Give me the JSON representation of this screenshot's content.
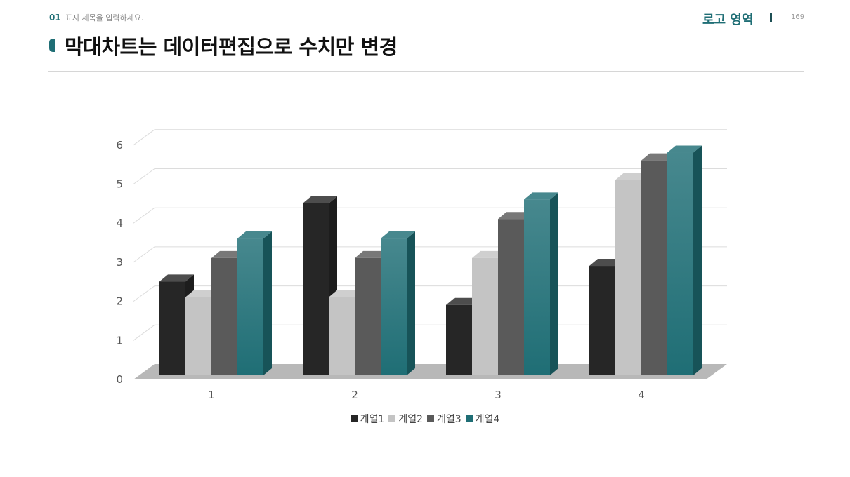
{
  "header": {
    "section_number": "01",
    "section_label": "표지 제목을 입력하세요.",
    "logo_text": "로고 영역",
    "page_number": "169"
  },
  "title": "막대차트는 데이터편집으로 수치만 변경",
  "chart_data": {
    "type": "bar",
    "style": "3d-clustered-column",
    "title": "",
    "xlabel": "",
    "ylabel": "",
    "categories": [
      "1",
      "2",
      "3",
      "4"
    ],
    "ylim": [
      0,
      6
    ],
    "yticks": [
      0,
      1,
      2,
      3,
      4,
      5,
      6
    ],
    "grid": true,
    "legend_position": "bottom",
    "series": [
      {
        "name": "계열1",
        "values": [
          2.4,
          4.4,
          1.8,
          2.8
        ],
        "color": "#262626"
      },
      {
        "name": "계열2",
        "values": [
          2.0,
          2.0,
          3.0,
          5.0
        ],
        "color": "#c4c4c4"
      },
      {
        "name": "계열3",
        "values": [
          3.0,
          3.0,
          4.0,
          5.5
        ],
        "color": "#5a5a5a"
      },
      {
        "name": "계열4",
        "values": [
          3.5,
          3.5,
          4.5,
          5.7
        ],
        "color": "#1f6e75"
      }
    ]
  }
}
